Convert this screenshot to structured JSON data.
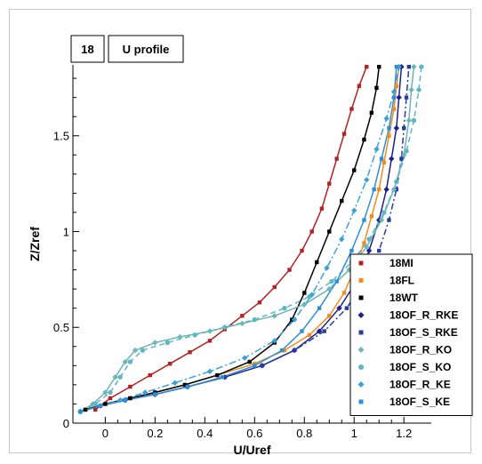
{
  "chart_data": {
    "type": "line",
    "tag": "18",
    "title": "U profile",
    "xlabel": "U/Uref",
    "ylabel": "Z/Zref",
    "xlim": [
      -0.13,
      1.31
    ],
    "ylim": [
      0,
      1.87
    ],
    "xticks": [
      0,
      0.2,
      0.4,
      0.6,
      0.8,
      1,
      1.2
    ],
    "yticks": [
      0,
      0.5,
      1,
      1.5
    ],
    "grid": false,
    "legend_position": "bottom-right",
    "series": [
      {
        "name": "18MI",
        "color": "#b22222",
        "marker": "square",
        "dash": "",
        "x": [
          -0.04,
          0.02,
          0.1,
          0.18,
          0.26,
          0.34,
          0.42,
          0.48,
          0.55,
          0.62,
          0.68,
          0.74,
          0.79,
          0.83,
          0.87,
          0.9,
          0.93,
          0.96,
          0.99,
          1.02,
          1.05
        ],
        "y": [
          0.07,
          0.13,
          0.19,
          0.25,
          0.31,
          0.37,
          0.43,
          0.49,
          0.56,
          0.63,
          0.71,
          0.8,
          0.9,
          1.0,
          1.12,
          1.25,
          1.38,
          1.51,
          1.64,
          1.76,
          1.86
        ]
      },
      {
        "name": "18FL",
        "color": "#f28c1e",
        "marker": "square",
        "dash": "",
        "x": [
          -0.08,
          0.0,
          0.1,
          0.2,
          0.32,
          0.45,
          0.6,
          0.72,
          0.82,
          0.9,
          0.96,
          1.0,
          1.04,
          1.07,
          1.1,
          1.12,
          1.14,
          1.16,
          1.17,
          1.18
        ],
        "y": [
          0.07,
          0.1,
          0.13,
          0.16,
          0.2,
          0.25,
          0.31,
          0.38,
          0.46,
          0.56,
          0.68,
          0.8,
          0.94,
          1.08,
          1.22,
          1.36,
          1.5,
          1.64,
          1.76,
          1.86
        ]
      },
      {
        "name": "18WT",
        "color": "#000000",
        "marker": "square",
        "dash": "",
        "x": [
          -0.08,
          0.0,
          0.1,
          0.2,
          0.32,
          0.45,
          0.58,
          0.68,
          0.75,
          0.8,
          0.85,
          0.9,
          0.95,
          1.0,
          1.04,
          1.07,
          1.09,
          1.1
        ],
        "y": [
          0.07,
          0.1,
          0.13,
          0.16,
          0.2,
          0.25,
          0.32,
          0.42,
          0.54,
          0.68,
          0.84,
          1.0,
          1.16,
          1.32,
          1.48,
          1.62,
          1.75,
          1.86
        ]
      },
      {
        "name": "18OF_R_RKE",
        "color": "#1e1e8c",
        "marker": "diamond",
        "dash": "",
        "x": [
          -0.1,
          -0.02,
          0.08,
          0.2,
          0.33,
          0.48,
          0.63,
          0.76,
          0.86,
          0.94,
          1.01,
          1.06,
          1.1,
          1.13,
          1.15,
          1.17,
          1.18,
          1.19
        ],
        "y": [
          0.06,
          0.09,
          0.12,
          0.15,
          0.19,
          0.24,
          0.3,
          0.38,
          0.48,
          0.6,
          0.74,
          0.9,
          1.06,
          1.22,
          1.38,
          1.54,
          1.7,
          1.86
        ]
      },
      {
        "name": "18OF_S_RKE",
        "color": "#283c9c",
        "marker": "square",
        "dash": "7,3,2,3",
        "x": [
          -0.1,
          -0.02,
          0.08,
          0.2,
          0.33,
          0.48,
          0.63,
          0.76,
          0.88,
          0.97,
          1.04,
          1.1,
          1.14,
          1.17,
          1.19,
          1.2,
          1.21,
          1.22
        ],
        "y": [
          0.06,
          0.09,
          0.12,
          0.15,
          0.19,
          0.24,
          0.3,
          0.38,
          0.48,
          0.6,
          0.74,
          0.9,
          1.06,
          1.22,
          1.38,
          1.54,
          1.7,
          1.86
        ]
      },
      {
        "name": "18OF_R_KO",
        "color": "#6fb6b3",
        "marker": "diamond",
        "dash": "",
        "x": [
          -0.1,
          -0.05,
          0.0,
          0.04,
          0.08,
          0.12,
          0.2,
          0.3,
          0.42,
          0.55,
          0.68,
          0.8,
          0.9,
          0.98,
          1.05,
          1.11,
          1.16,
          1.2,
          1.22,
          1.23,
          1.24
        ],
        "y": [
          0.06,
          0.1,
          0.16,
          0.24,
          0.32,
          0.38,
          0.42,
          0.45,
          0.48,
          0.52,
          0.56,
          0.62,
          0.7,
          0.8,
          0.92,
          1.06,
          1.22,
          1.4,
          1.58,
          1.74,
          1.86
        ]
      },
      {
        "name": "18OF_S_KO",
        "color": "#5cb6c6",
        "marker": "circle",
        "dash": "6,4",
        "x": [
          -0.1,
          -0.04,
          0.02,
          0.06,
          0.1,
          0.15,
          0.25,
          0.36,
          0.48,
          0.6,
          0.72,
          0.82,
          0.91,
          0.99,
          1.06,
          1.12,
          1.17,
          1.21,
          1.24,
          1.26,
          1.27
        ],
        "y": [
          0.06,
          0.1,
          0.16,
          0.24,
          0.32,
          0.38,
          0.42,
          0.46,
          0.5,
          0.54,
          0.6,
          0.66,
          0.74,
          0.84,
          0.96,
          1.1,
          1.26,
          1.42,
          1.58,
          1.74,
          1.86
        ]
      },
      {
        "name": "18OF_R_KE",
        "color": "#3ba1d9",
        "marker": "diamond",
        "dash": "8,3,2,3",
        "x": [
          -0.1,
          -0.02,
          0.06,
          0.16,
          0.28,
          0.42,
          0.56,
          0.68,
          0.76,
          0.83,
          0.89,
          0.95,
          1.0,
          1.05,
          1.09,
          1.13,
          1.16,
          1.18
        ],
        "y": [
          0.06,
          0.09,
          0.12,
          0.16,
          0.21,
          0.27,
          0.34,
          0.43,
          0.54,
          0.67,
          0.81,
          0.96,
          1.11,
          1.27,
          1.43,
          1.59,
          1.73,
          1.86
        ]
      },
      {
        "name": "18OF_S_KE",
        "color": "#2f8fd6",
        "marker": "square",
        "dash": "",
        "x": [
          -0.1,
          -0.02,
          0.08,
          0.2,
          0.33,
          0.47,
          0.6,
          0.71,
          0.79,
          0.86,
          0.93,
          0.99,
          1.04,
          1.08,
          1.11,
          1.14,
          1.16,
          1.17
        ],
        "y": [
          0.06,
          0.09,
          0.12,
          0.15,
          0.19,
          0.24,
          0.3,
          0.38,
          0.48,
          0.6,
          0.74,
          0.9,
          1.06,
          1.22,
          1.38,
          1.54,
          1.7,
          1.86
        ]
      }
    ]
  }
}
